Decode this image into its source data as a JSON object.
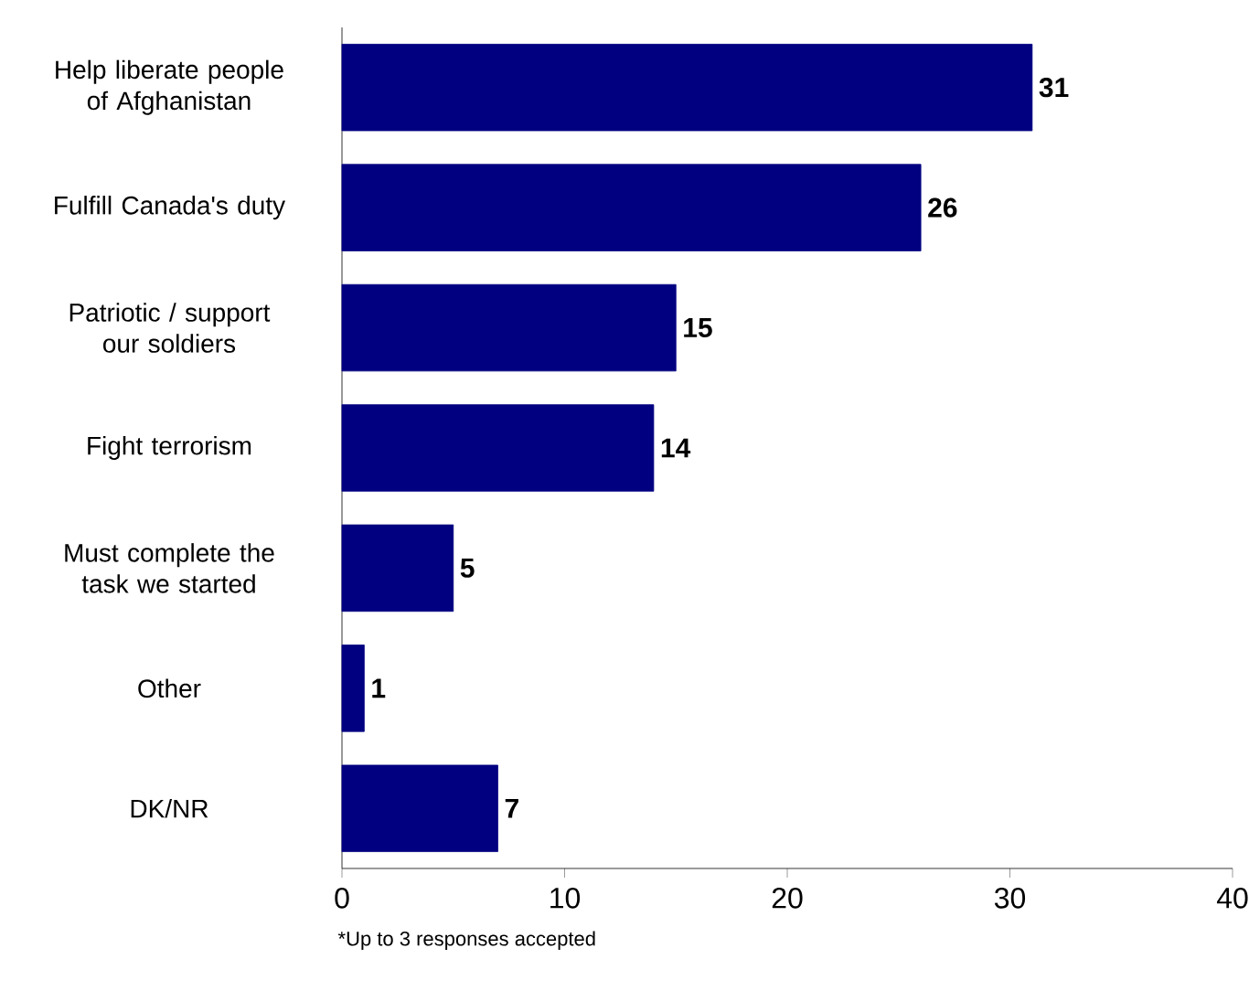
{
  "chart_data": {
    "type": "bar",
    "orientation": "horizontal",
    "categories": [
      "Help liberate people of Afghanistan",
      "Fulfill Canada's duty",
      "Patriotic / support our soldiers",
      "Fight terrorism",
      "Must complete the task we started",
      "Other",
      "DK/NR"
    ],
    "values": [
      31,
      26,
      15,
      14,
      5,
      1,
      7
    ],
    "color": "#000080",
    "xlim": [
      0,
      40
    ],
    "xticks": [
      0,
      10,
      20,
      30,
      40
    ],
    "data_labels": true,
    "grid": false,
    "annotations": [
      "*Up to 3 responses accepted"
    ]
  }
}
